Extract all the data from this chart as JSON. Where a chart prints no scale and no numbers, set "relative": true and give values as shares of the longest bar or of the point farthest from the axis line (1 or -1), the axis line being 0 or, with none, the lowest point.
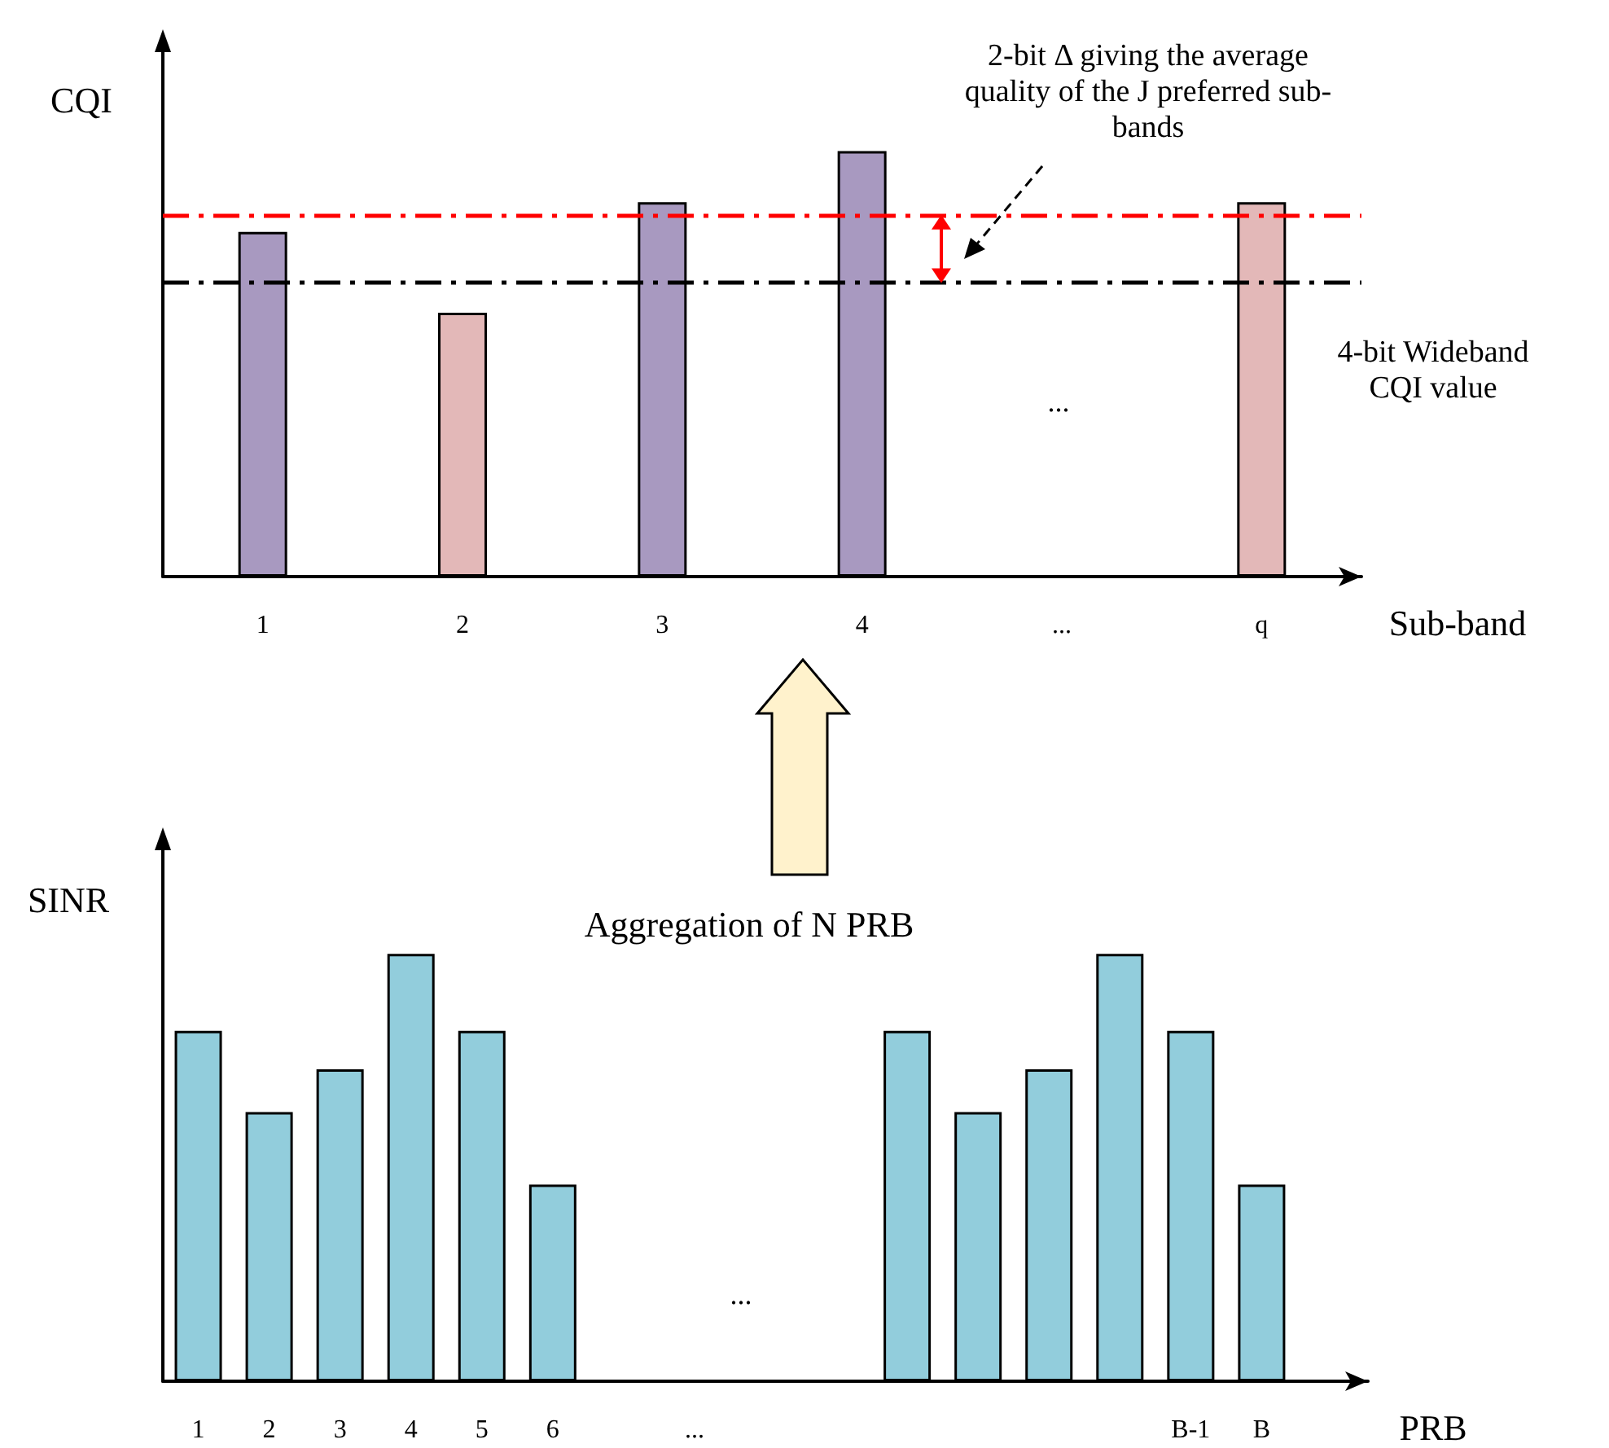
{
  "chart_data": [
    {
      "type": "bar",
      "relative": true,
      "xlabel": "Sub-band",
      "ylabel": "CQI",
      "categories": [
        "1",
        "2",
        "3",
        "4",
        "...",
        "q"
      ],
      "values": [
        0.81,
        0.62,
        0.88,
        1,
        null,
        0.88
      ],
      "colors": [
        "#a899c0",
        "#e3b8b8",
        "#a899c0",
        "#a899c0",
        null,
        "#e3b8b8"
      ],
      "ref_lines": [
        {
          "axis": "y",
          "value": 0.69,
          "label": "4-bit Wideband CQI value",
          "color": "#000000",
          "line_style": "dashed"
        },
        {
          "axis": "y",
          "value": 0.85,
          "color": "#ff0000",
          "line_style": "dashed"
        }
      ],
      "annotations": [
        "2-bit Δ giving the average quality of the J preferred sub-bands",
        "..."
      ],
      "grid": false,
      "tick_labels": "x"
    },
    {
      "type": "bar",
      "relative": true,
      "xlabel": "PRB",
      "ylabel": "SINR",
      "categories": [
        "1",
        "2",
        "3",
        "4",
        "5",
        "6",
        null,
        "...",
        null,
        null,
        null,
        null,
        null,
        null,
        "B-1",
        "B",
        null
      ],
      "values": [
        0.82,
        0.63,
        0.73,
        1,
        0.82,
        0.46,
        null,
        null,
        null,
        null,
        0.82,
        0.63,
        0.73,
        1,
        0.82,
        0.46,
        null
      ],
      "color": "#92cddc",
      "annotations": [
        "Aggregation of N PRB",
        "..."
      ],
      "grid": false,
      "tick_labels": "x"
    }
  ]
}
